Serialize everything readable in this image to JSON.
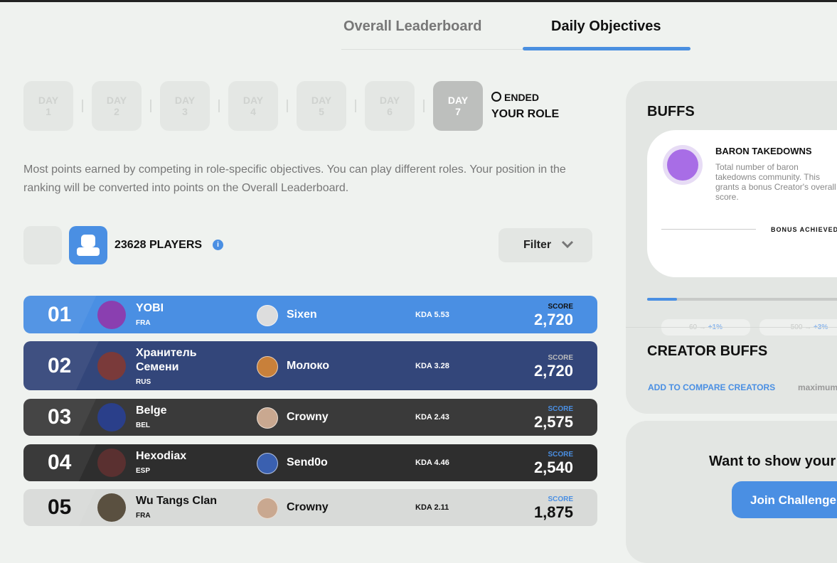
{
  "tabs": [
    "Overall Leaderboard",
    "Daily Objectives"
  ],
  "days": [
    {
      "label": "DAY",
      "number": "1"
    },
    {
      "label": "DAY",
      "number": "2"
    },
    {
      "label": "DAY",
      "number": "3"
    },
    {
      "label": "DAY",
      "number": "4"
    },
    {
      "label": "DAY",
      "number": "5"
    },
    {
      "label": "DAY",
      "number": "6"
    },
    {
      "label": "DAY",
      "number": "7"
    }
  ],
  "day_status": {
    "state": "ENDED",
    "role": "YOUR ROLE"
  },
  "description": "Most points earned by competing in role-specific objectives. You can play different roles. Your position in the ranking will be converted into points on the Overall Leaderboard.",
  "players": "23628 PLAYERS",
  "filter": "Filter",
  "rows": [
    {
      "rank": "01",
      "name": "YOBI",
      "country": "FRA",
      "creator": "Sixen",
      "kda": "KDA 5.53",
      "score_label": "SCORE",
      "score": "2,720"
    },
    {
      "rank": "02",
      "name": "Хранитель Семени",
      "country": "RUS",
      "creator": "Молоко",
      "kda": "KDA 3.28",
      "score_label": "SCORE",
      "score": "2,720"
    },
    {
      "rank": "03",
      "name": "Belge",
      "country": "BEL",
      "creator": "Crowny",
      "kda": "KDA 2.43",
      "score_label": "SCORE",
      "score": "2,575"
    },
    {
      "rank": "04",
      "name": "Hexodiax",
      "country": "ESP",
      "creator": "Send0o",
      "kda": "KDA 4.46",
      "score_label": "SCORE",
      "score": "2,540"
    },
    {
      "rank": "05",
      "name": "Wu Tangs Clan",
      "country": "FRA",
      "creator": "Crowny",
      "kda": "KDA 2.11",
      "score_label": "SCORE",
      "score": "1,875"
    }
  ],
  "buffs": {
    "title": "BUFFS",
    "card_title": "BARON TAKEDOWNS",
    "card_text": "Total number of baron takedowns community. This grants a bonus Creator's overall score.",
    "bonus_label": "BONUS ACHIEVED",
    "pills": [
      {
        "threshold": "60 →",
        "bonus": "+1%"
      },
      {
        "threshold": "500 →",
        "bonus": "+3%"
      }
    ]
  },
  "creator_buffs": {
    "title": "CREATOR BUFFS",
    "link": "ADD TO COMPARE CREATORS",
    "extra": "maximum"
  },
  "cta": {
    "text": "Want to show your",
    "button": "Join Challenge"
  }
}
